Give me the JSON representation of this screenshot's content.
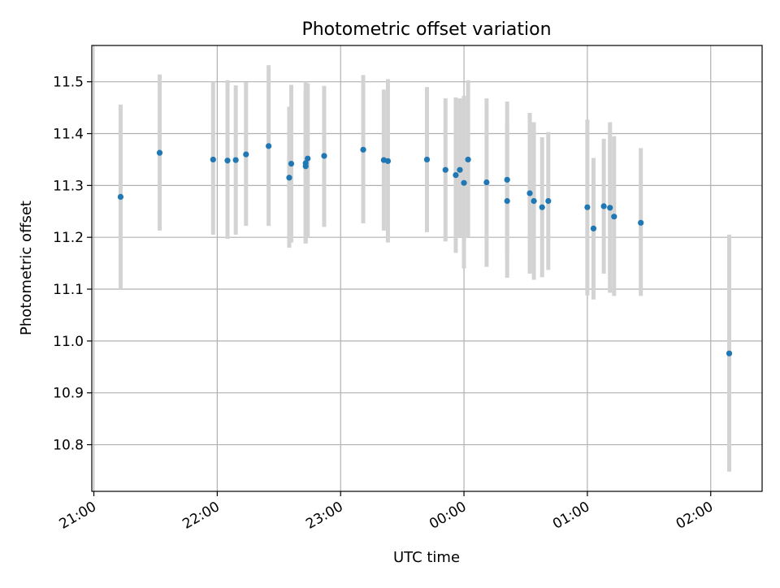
{
  "chart_data": {
    "type": "scatter",
    "title": "Photometric offset variation",
    "xlabel": "UTC time",
    "ylabel": "Photometric offset",
    "x_ticks": [
      "21:00",
      "22:00",
      "23:00",
      "00:00",
      "01:00",
      "02:00"
    ],
    "y_ticks": [
      "10.8",
      "10.9",
      "11.0",
      "11.1",
      "11.2",
      "11.3",
      "11.4",
      "11.5"
    ],
    "xlim_minutes_after_21h": [
      -1,
      325
    ],
    "ylim": [
      10.71,
      11.57
    ],
    "grid": true,
    "colors": {
      "marker": "#1f77b4",
      "errorbar": "#d3d3d3",
      "grid": "#b0b0b0"
    },
    "points": [
      {
        "t": "21:13",
        "y": 11.278,
        "lo": 11.1,
        "hi": 11.456
      },
      {
        "t": "21:32",
        "y": 11.363,
        "lo": 11.213,
        "hi": 11.514
      },
      {
        "t": "21:58",
        "y": 11.35,
        "lo": 11.205,
        "hi": 11.5
      },
      {
        "t": "22:05",
        "y": 11.348,
        "lo": 11.197,
        "hi": 11.503
      },
      {
        "t": "22:09",
        "y": 11.349,
        "lo": 11.205,
        "hi": 11.493
      },
      {
        "t": "22:14",
        "y": 11.36,
        "lo": 11.222,
        "hi": 11.499
      },
      {
        "t": "22:25",
        "y": 11.376,
        "lo": 11.222,
        "hi": 11.532
      },
      {
        "t": "22:35",
        "y": 11.315,
        "lo": 11.18,
        "hi": 11.452
      },
      {
        "t": "22:36",
        "y": 11.342,
        "lo": 11.19,
        "hi": 11.494
      },
      {
        "t": "22:43",
        "y": 11.343,
        "lo": 11.19,
        "hi": 11.5
      },
      {
        "t": "22:43",
        "y": 11.337,
        "lo": 11.188,
        "hi": 11.485
      },
      {
        "t": "22:44",
        "y": 11.352,
        "lo": 11.2,
        "hi": 11.497
      },
      {
        "t": "22:52",
        "y": 11.357,
        "lo": 11.22,
        "hi": 11.492
      },
      {
        "t": "23:11",
        "y": 11.369,
        "lo": 11.227,
        "hi": 11.513
      },
      {
        "t": "23:21",
        "y": 11.349,
        "lo": 11.213,
        "hi": 11.485
      },
      {
        "t": "23:23",
        "y": 11.347,
        "lo": 11.19,
        "hi": 11.505
      },
      {
        "t": "23:42",
        "y": 11.35,
        "lo": 11.21,
        "hi": 11.49
      },
      {
        "t": "23:51",
        "y": 11.33,
        "lo": 11.192,
        "hi": 11.468
      },
      {
        "t": "23:56",
        "y": 11.32,
        "lo": 11.17,
        "hi": 11.47
      },
      {
        "t": "23:58",
        "y": 11.33,
        "lo": 11.2,
        "hi": 11.468
      },
      {
        "t": "24:00",
        "y": 11.305,
        "lo": 11.14,
        "hi": 11.473
      },
      {
        "t": "24:02",
        "y": 11.35,
        "lo": 11.2,
        "hi": 11.503
      },
      {
        "t": "24:11",
        "y": 11.306,
        "lo": 11.143,
        "hi": 11.468
      },
      {
        "t": "24:21",
        "y": 11.27,
        "lo": 11.122,
        "hi": 11.42
      },
      {
        "t": "24:21",
        "y": 11.311,
        "lo": 11.16,
        "hi": 11.462
      },
      {
        "t": "24:32",
        "y": 11.285,
        "lo": 11.13,
        "hi": 11.44
      },
      {
        "t": "24:34",
        "y": 11.27,
        "lo": 11.118,
        "hi": 11.422
      },
      {
        "t": "24:38",
        "y": 11.258,
        "lo": 11.123,
        "hi": 11.393
      },
      {
        "t": "24:41",
        "y": 11.27,
        "lo": 11.137,
        "hi": 11.403
      },
      {
        "t": "25:00",
        "y": 11.258,
        "lo": 11.088,
        "hi": 11.427
      },
      {
        "t": "25:03",
        "y": 11.217,
        "lo": 11.08,
        "hi": 11.353
      },
      {
        "t": "25:08",
        "y": 11.26,
        "lo": 11.13,
        "hi": 11.39
      },
      {
        "t": "25:11",
        "y": 11.257,
        "lo": 11.093,
        "hi": 11.422
      },
      {
        "t": "25:13",
        "y": 11.24,
        "lo": 11.087,
        "hi": 11.395
      },
      {
        "t": "25:26",
        "y": 11.228,
        "lo": 11.087,
        "hi": 11.372
      },
      {
        "t": "26:09",
        "y": 10.976,
        "lo": 10.748,
        "hi": 11.205
      }
    ]
  }
}
